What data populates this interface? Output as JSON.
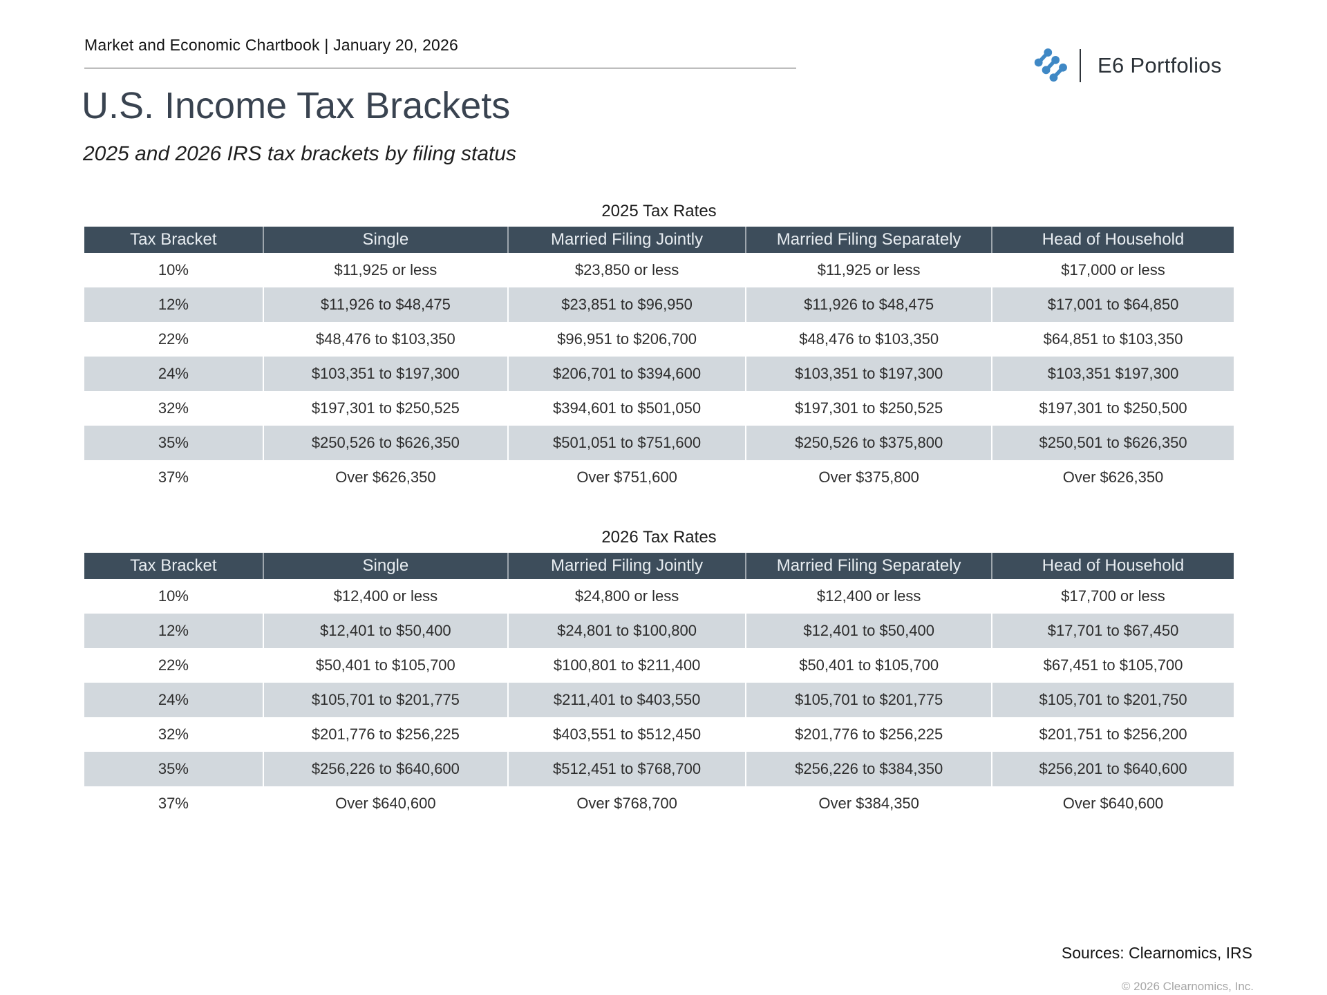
{
  "header": {
    "chartbook_title": "Market and Economic Chartbook | January 20, 2026",
    "logo_text": "E6 Portfolios"
  },
  "title": "U.S. Income Tax Brackets",
  "subtitle": "2025 and 2026 IRS tax brackets by filing status",
  "colors": {
    "table_header_bg": "#3d4d5b",
    "row_alt_bg": "#d2d8dd",
    "logo_blue": "#3f88c5",
    "title_color": "#394350"
  },
  "tables": [
    {
      "caption": "2025 Tax Rates",
      "columns": [
        "Tax Bracket",
        "Single",
        "Married Filing Jointly",
        "Married Filing Separately",
        "Head of Household"
      ],
      "rows": [
        [
          "10%",
          "$11,925 or less",
          "$23,850 or less",
          "$11,925 or less",
          "$17,000 or less"
        ],
        [
          "12%",
          "$11,926 to $48,475",
          "$23,851 to $96,950",
          "$11,926 to $48,475",
          "$17,001 to $64,850"
        ],
        [
          "22%",
          "$48,476 to $103,350",
          "$96,951 to $206,700",
          "$48,476 to $103,350",
          "$64,851 to $103,350"
        ],
        [
          "24%",
          "$103,351 to $197,300",
          "$206,701 to $394,600",
          "$103,351 to $197,300",
          "$103,351 $197,300"
        ],
        [
          "32%",
          "$197,301 to $250,525",
          "$394,601 to $501,050",
          "$197,301 to $250,525",
          "$197,301 to $250,500"
        ],
        [
          "35%",
          "$250,526 to $626,350",
          "$501,051 to $751,600",
          "$250,526 to $375,800",
          "$250,501 to $626,350"
        ],
        [
          "37%",
          "Over $626,350",
          "Over $751,600",
          "Over $375,800",
          "Over $626,350"
        ]
      ]
    },
    {
      "caption": "2026 Tax Rates",
      "columns": [
        "Tax Bracket",
        "Single",
        "Married Filing Jointly",
        "Married Filing Separately",
        "Head of Household"
      ],
      "rows": [
        [
          "10%",
          "$12,400 or less",
          "$24,800 or less",
          "$12,400 or less",
          "$17,700 or less"
        ],
        [
          "12%",
          "$12,401 to $50,400",
          "$24,801 to $100,800",
          "$12,401 to $50,400",
          "$17,701 to $67,450"
        ],
        [
          "22%",
          "$50,401 to $105,700",
          "$100,801 to $211,400",
          "$50,401 to $105,700",
          "$67,451 to $105,700"
        ],
        [
          "24%",
          "$105,701 to $201,775",
          "$211,401 to $403,550",
          "$105,701 to $201,775",
          "$105,701 to $201,750"
        ],
        [
          "32%",
          "$201,776 to $256,225",
          "$403,551 to $512,450",
          "$201,776 to $256,225",
          "$201,751 to $256,200"
        ],
        [
          "35%",
          "$256,226 to $640,600",
          "$512,451 to $768,700",
          "$256,226 to $384,350",
          "$256,201 to $640,600"
        ],
        [
          "37%",
          "Over $640,600",
          "Over $768,700",
          "Over $384,350",
          "Over $640,600"
        ]
      ]
    }
  ],
  "footer": {
    "sources": "Sources: Clearnomics, IRS",
    "copyright": "© 2026 Clearnomics, Inc."
  }
}
